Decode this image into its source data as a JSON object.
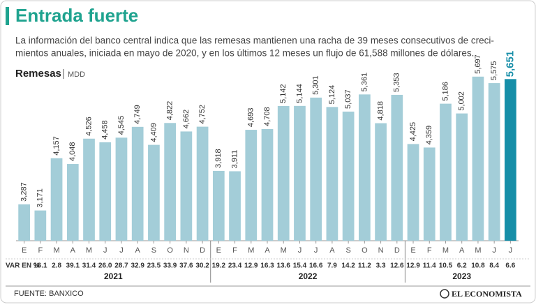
{
  "chart_data": {
    "type": "bar",
    "title": "Entrada fuerte",
    "subtitle_lines": [
      "La información del banco central indica que las remesas mantienen una racha de 39 meses consecutivos de creci-",
      "mientos anuales, iniciada en mayo de 2020, y en los últimos 12 meses un flujo de 61,588 millones de dólares."
    ],
    "y_label": "Remesas",
    "unit": "MDD",
    "var_label": "VAR EN %",
    "source": "FUENTE: BANXICO",
    "brand": "EL ECONOMISTA",
    "color": "#a3cdd8",
    "latest_color": "#168ea8",
    "ylim": [
      2600,
      5800
    ],
    "years": [
      {
        "name": "2021",
        "categories": [
          "E",
          "F",
          "M",
          "A",
          "M",
          "J",
          "J",
          "A",
          "S",
          "O",
          "N",
          "D"
        ],
        "values": [
          3287,
          3171,
          4157,
          4048,
          4526,
          4458,
          4545,
          4749,
          4409,
          4822,
          4662,
          4752
        ],
        "value_labels": [
          "3,287",
          "3,171",
          "4,157",
          "4,048",
          "4,526",
          "4,458",
          "4,545",
          "4,749",
          "4,409",
          "4,822",
          "4,662",
          "4,752"
        ],
        "var": [
          null,
          16.1,
          2.8,
          39.1,
          31.4,
          26.0,
          28.7,
          32.9,
          23.5,
          33.9,
          37.6,
          30.2
        ],
        "var_labels": [
          null,
          "16.1",
          "2.8",
          "39.1",
          "31.4",
          "26.0",
          "28.7",
          "32.9",
          "23.5",
          "33.9",
          "37.6",
          "30.2"
        ]
      },
      {
        "name": "2022",
        "categories": [
          "E",
          "F",
          "M",
          "A",
          "M",
          "J",
          "J",
          "A",
          "S",
          "O",
          "N",
          "D"
        ],
        "values": [
          3918,
          3911,
          4693,
          4708,
          5142,
          5144,
          5301,
          5124,
          5037,
          5361,
          4818,
          5353
        ],
        "value_labels": [
          "3,918",
          "3,911",
          "4,693",
          "4,708",
          "5,142",
          "5,144",
          "5,301",
          "5,124",
          "5,037",
          "5,361",
          "4,818",
          "5,353"
        ],
        "var": [
          19.2,
          23.4,
          12.9,
          16.3,
          13.6,
          15.4,
          16.6,
          7.9,
          14.2,
          11.2,
          3.3,
          12.6
        ],
        "var_labels": [
          "19.2",
          "23.4",
          "12.9",
          "16.3",
          "13.6",
          "15.4",
          "16.6",
          "7.9",
          "14.2",
          "11.2",
          "3.3",
          "12.6"
        ]
      },
      {
        "name": "2023",
        "categories": [
          "E",
          "F",
          "M",
          "A",
          "M",
          "J",
          "J"
        ],
        "values": [
          4425,
          4359,
          5186,
          5002,
          5697,
          5575,
          5651
        ],
        "value_labels": [
          "4,425",
          "4,359",
          "5,186",
          "5,002",
          "5,697",
          "5,575",
          "5,651"
        ],
        "var": [
          12.9,
          11.4,
          10.5,
          6.2,
          10.8,
          8.4,
          6.6
        ],
        "var_labels": [
          "12.9",
          "11.4",
          "10.5",
          "6.2",
          "10.8",
          "8.4",
          "6.6"
        ]
      }
    ]
  }
}
